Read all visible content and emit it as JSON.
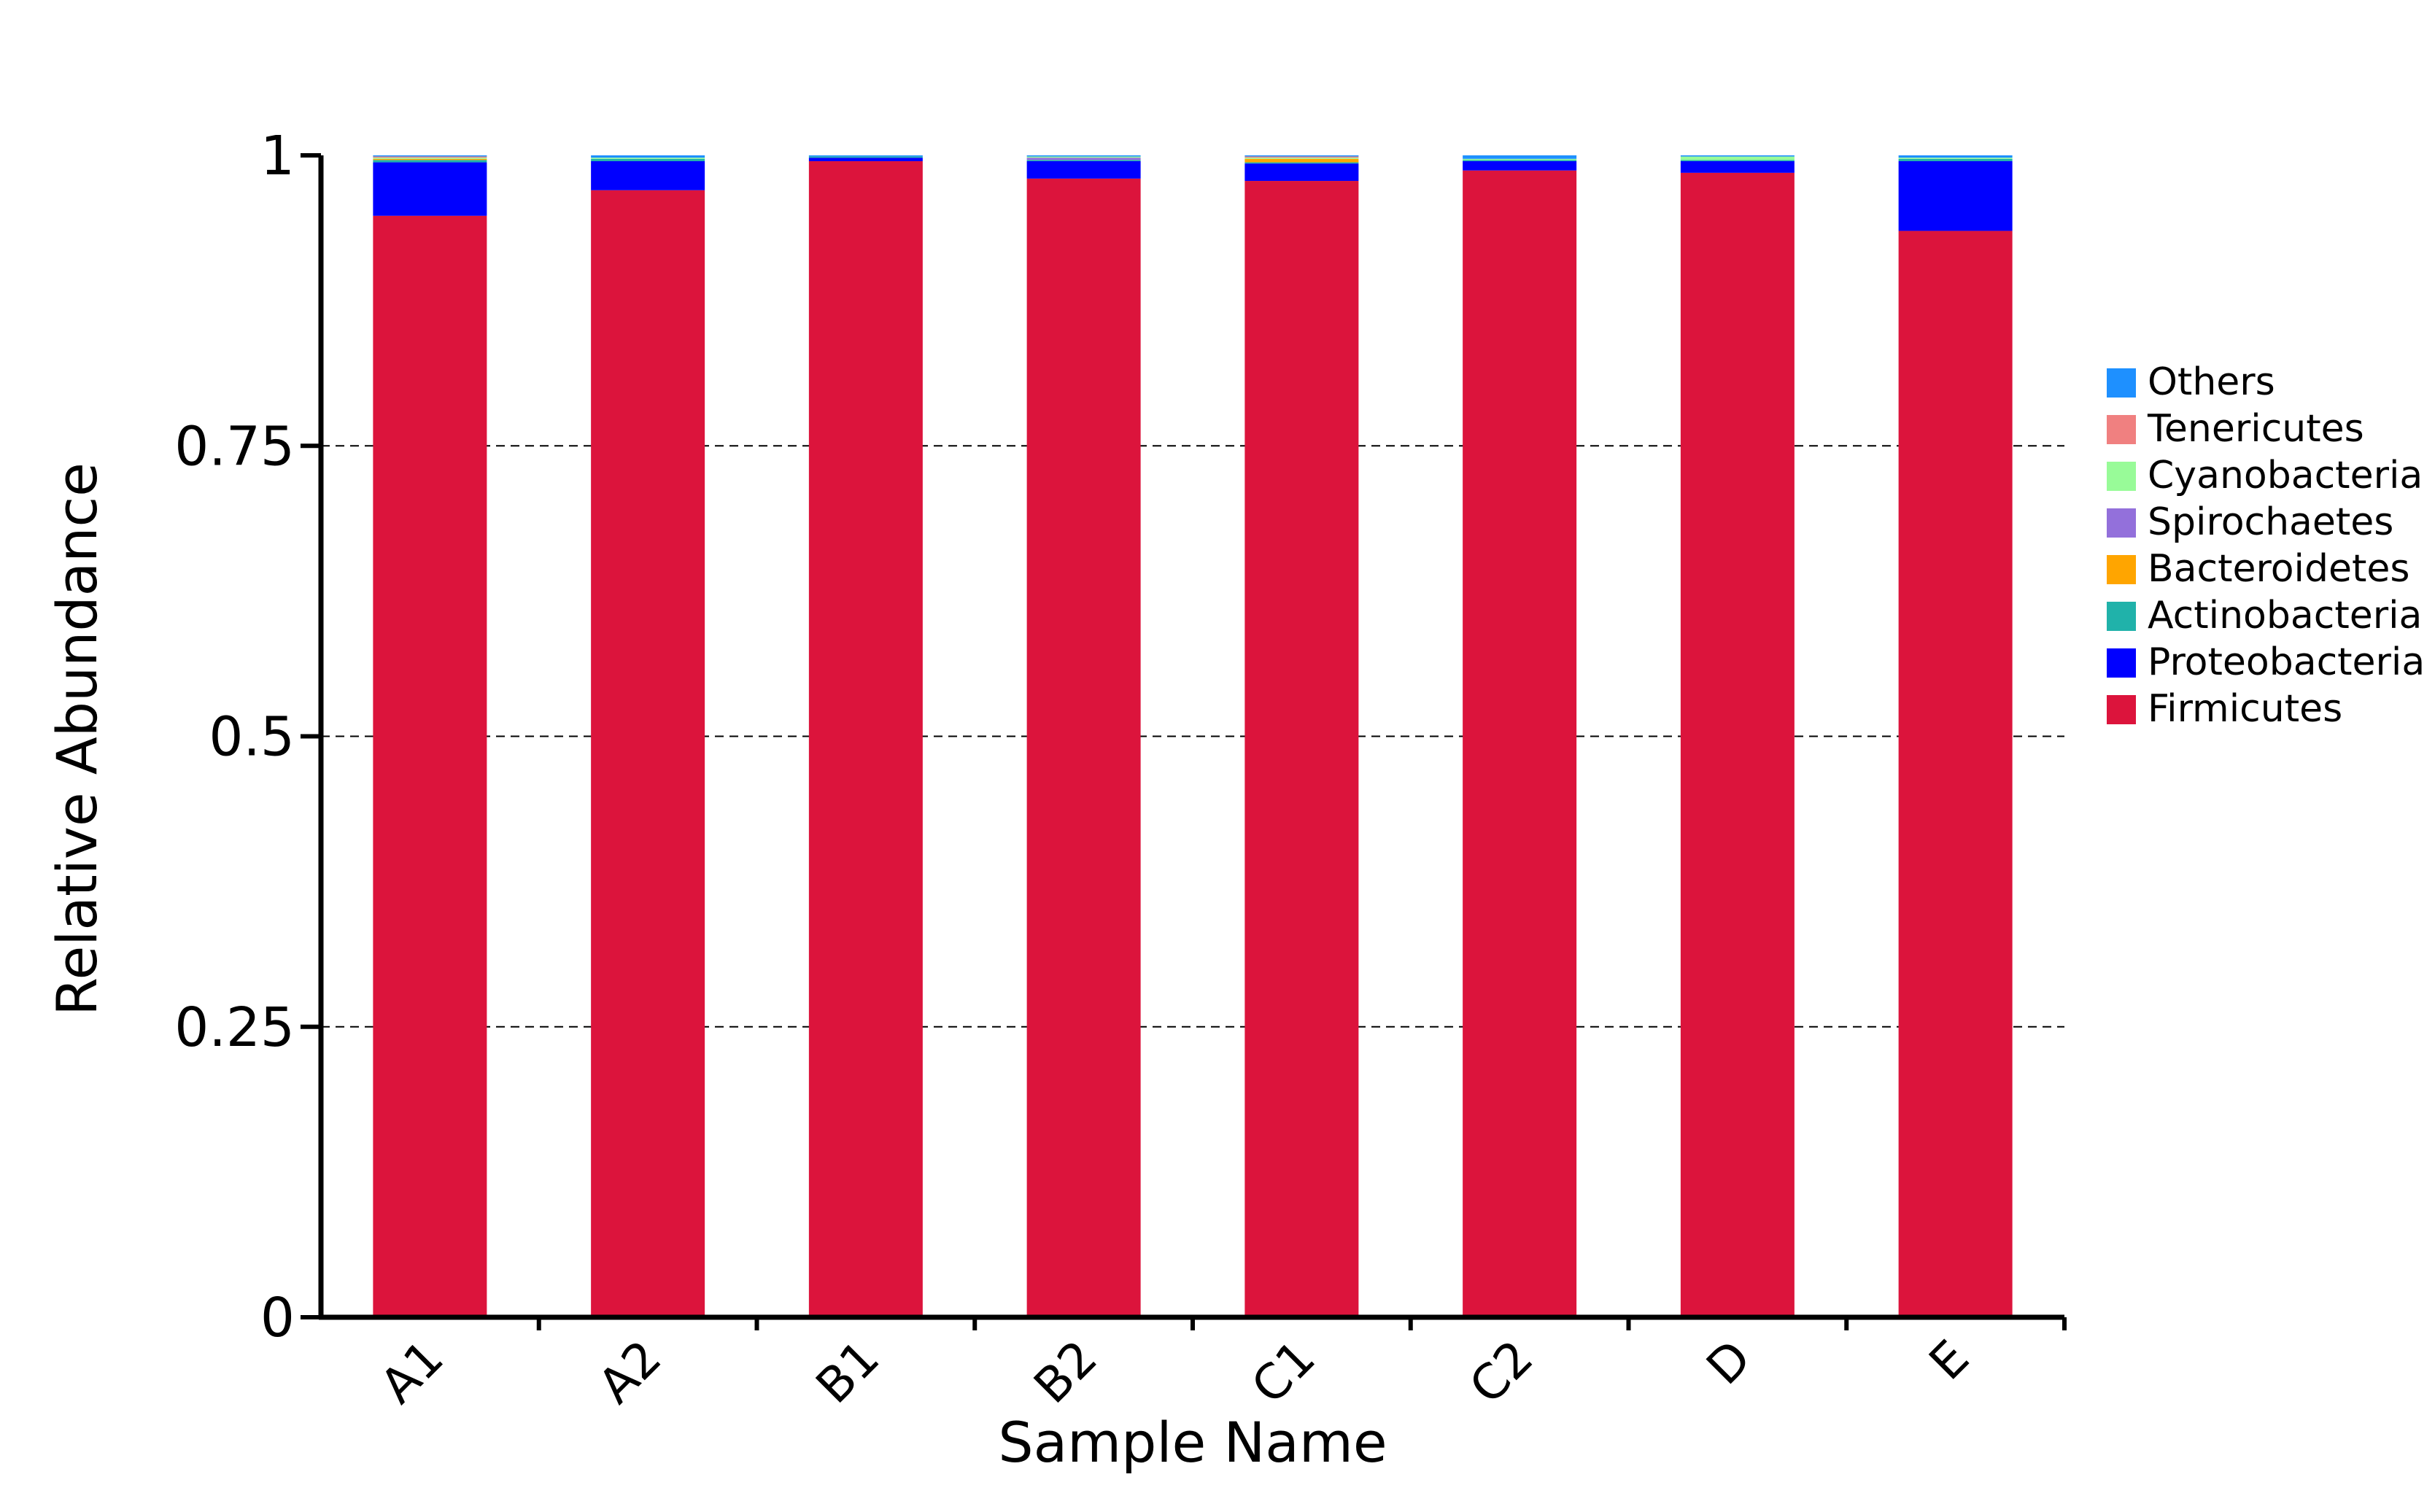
{
  "chart_data": {
    "type": "bar",
    "stacked": true,
    "title": "",
    "xlabel": "Sample Name",
    "ylabel": "Relative Abundance",
    "ylim": [
      0,
      1
    ],
    "yticks": [
      0,
      0.25,
      0.5,
      0.75,
      1
    ],
    "ytick_labels": [
      "0",
      "0.25",
      "0.5",
      "0.75",
      "1"
    ],
    "grid": "horizontal dashed at 0.25, 0.5, 0.75",
    "legend_position": "right",
    "categories": [
      "A1",
      "A2",
      "B1",
      "B2",
      "C1",
      "C2",
      "D",
      "E"
    ],
    "series": [
      {
        "name": "Firmicutes",
        "color": "#DC143C",
        "values": [
          0.948,
          0.97,
          0.995,
          0.98,
          0.978,
          0.987,
          0.985,
          0.935
        ]
      },
      {
        "name": "Proteobacteria",
        "color": "#0000FF",
        "values": [
          0.046,
          0.025,
          0.003,
          0.015,
          0.015,
          0.008,
          0.01,
          0.06
        ]
      },
      {
        "name": "Actinobacteria",
        "color": "#20B2AA",
        "values": [
          0.002,
          0.002,
          0.001,
          0.001,
          0.001,
          0.001,
          0.001,
          0.002
        ]
      },
      {
        "name": "Bacteroidetes",
        "color": "#FFA500",
        "values": [
          0.001,
          0.0,
          0.0,
          0.0,
          0.003,
          0.0,
          0.0,
          0.0
        ]
      },
      {
        "name": "Spirochaetes",
        "color": "#9370DB",
        "values": [
          0.0,
          0.0,
          0.0,
          0.002,
          0.0,
          0.0,
          0.0,
          0.0
        ]
      },
      {
        "name": "Cyanobacteria",
        "color": "#98FB98",
        "values": [
          0.001,
          0.001,
          0.0,
          0.001,
          0.001,
          0.001,
          0.003,
          0.001
        ]
      },
      {
        "name": "Tenericutes",
        "color": "#F08080",
        "values": [
          0.001,
          0.0,
          0.0,
          0.0,
          0.001,
          0.0,
          0.0,
          0.0
        ]
      },
      {
        "name": "Others",
        "color": "#1E90FF",
        "values": [
          0.001,
          0.002,
          0.001,
          0.001,
          0.001,
          0.003,
          0.001,
          0.002
        ]
      }
    ]
  }
}
